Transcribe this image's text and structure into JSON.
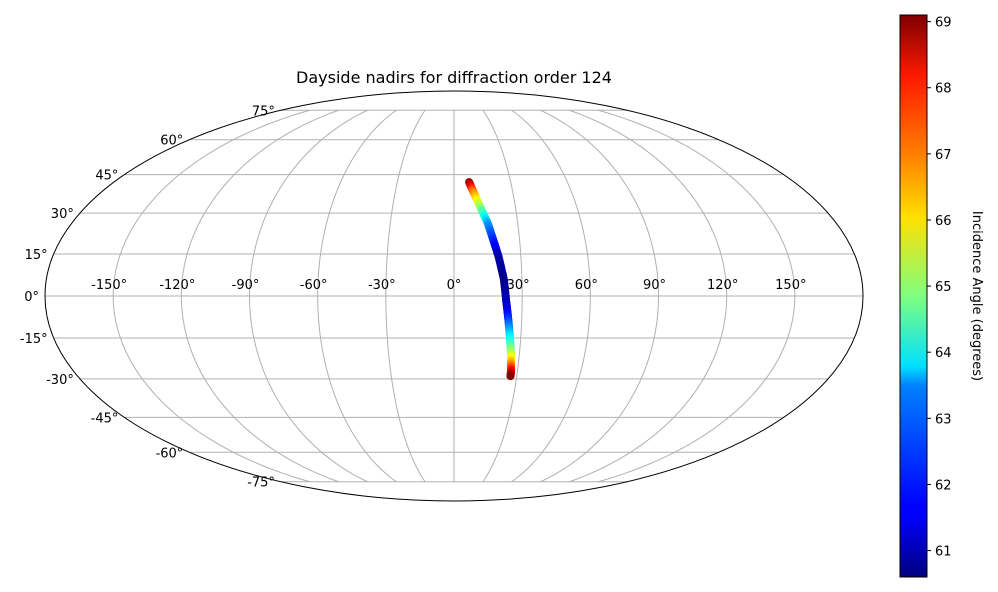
{
  "chart_data": {
    "type": "scatter",
    "projection": "mollweide",
    "title": "Dayside nadirs for diffraction order 124",
    "grid": true,
    "colormap": "jet",
    "x_ticks": [
      "-150°",
      "-120°",
      "-90°",
      "-60°",
      "-30°",
      "0°",
      "30°",
      "60°",
      "90°",
      "120°",
      "150°"
    ],
    "x_tick_values": [
      -150,
      -120,
      -90,
      -60,
      -30,
      0,
      30,
      60,
      90,
      120,
      150
    ],
    "y_ticks": [
      "-75°",
      "-60°",
      "-45°",
      "-30°",
      "-15°",
      "0°",
      "15°",
      "30°",
      "45°",
      "60°",
      "75°"
    ],
    "y_tick_values": [
      -75,
      -60,
      -45,
      -30,
      -15,
      0,
      15,
      30,
      45,
      60,
      75
    ],
    "colorbar": {
      "label": "Incidence Angle (degrees)",
      "vmin": 60.6,
      "vmax": 69.1,
      "ticks": [
        "61",
        "62",
        "63",
        "64",
        "65",
        "66",
        "67",
        "68",
        "69"
      ],
      "tick_values": [
        61,
        62,
        63,
        64,
        65,
        66,
        67,
        68,
        69
      ]
    },
    "track": {
      "description_points": [
        {
          "lon": 8,
          "lat": 42,
          "incidence": 69.0
        },
        {
          "lon": 10,
          "lat": 38,
          "incidence": 67.0
        },
        {
          "lon": 13,
          "lat": 32,
          "incidence": 65.0
        },
        {
          "lon": 16,
          "lat": 26,
          "incidence": 63.0
        },
        {
          "lon": 18,
          "lat": 20,
          "incidence": 62.0
        },
        {
          "lon": 20,
          "lat": 14,
          "incidence": 61.0
        },
        {
          "lon": 22,
          "lat": 6,
          "incidence": 60.7
        },
        {
          "lon": 23,
          "lat": -2,
          "incidence": 61.0
        },
        {
          "lon": 24,
          "lat": -8,
          "incidence": 62.0
        },
        {
          "lon": 25,
          "lat": -14,
          "incidence": 63.5
        },
        {
          "lon": 26,
          "lat": -20,
          "incidence": 65.0
        },
        {
          "lon": 26.5,
          "lat": -24,
          "incidence": 66.5
        },
        {
          "lon": 27,
          "lat": -27,
          "incidence": 68.0
        },
        {
          "lon": 27,
          "lat": -29,
          "incidence": 69.0
        }
      ]
    }
  }
}
